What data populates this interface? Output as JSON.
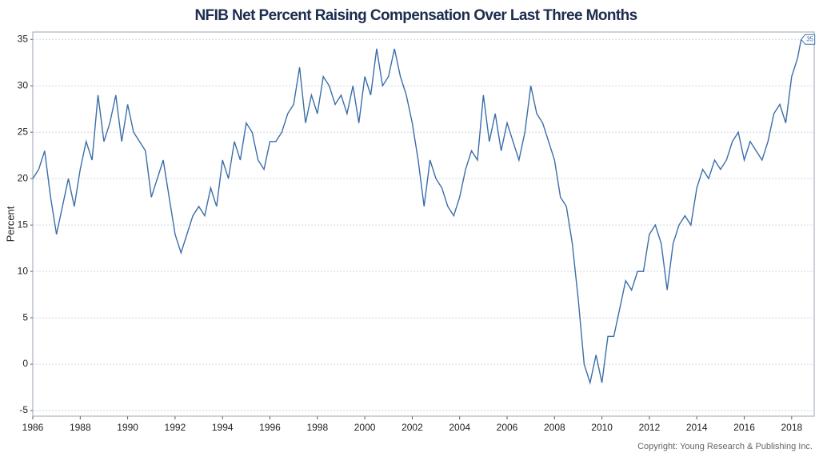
{
  "chart_data": {
    "type": "line",
    "title": "NFIB Net Percent Raising Compensation Over Last Three Months",
    "y_label": "Percent",
    "copyright": "Copyright: Young Research & Publishing Inc.",
    "color": "#3b6ea8",
    "x": [
      1986,
      1986.25,
      1986.5,
      1986.75,
      1987,
      1987.25,
      1987.5,
      1987.75,
      1988,
      1988.25,
      1988.5,
      1988.75,
      1989,
      1989.25,
      1989.5,
      1989.75,
      1990,
      1990.25,
      1990.5,
      1990.75,
      1991,
      1991.25,
      1991.5,
      1991.75,
      1992,
      1992.25,
      1992.5,
      1992.75,
      1993,
      1993.25,
      1993.5,
      1993.75,
      1994,
      1994.25,
      1994.5,
      1994.75,
      1995,
      1995.25,
      1995.5,
      1995.75,
      1996,
      1996.25,
      1996.5,
      1996.75,
      1997,
      1997.25,
      1997.5,
      1997.75,
      1998,
      1998.25,
      1998.5,
      1998.75,
      1999,
      1999.25,
      1999.5,
      1999.75,
      2000,
      2000.25,
      2000.5,
      2000.75,
      2001,
      2001.25,
      2001.5,
      2001.75,
      2002,
      2002.25,
      2002.5,
      2002.75,
      2003,
      2003.25,
      2003.5,
      2003.75,
      2004,
      2004.25,
      2004.5,
      2004.75,
      2005,
      2005.25,
      2005.5,
      2005.75,
      2006,
      2006.25,
      2006.5,
      2006.75,
      2007,
      2007.25,
      2007.5,
      2007.75,
      2008,
      2008.25,
      2008.5,
      2008.75,
      2009,
      2009.25,
      2009.5,
      2009.75,
      2010,
      2010.25,
      2010.5,
      2010.75,
      2011,
      2011.25,
      2011.5,
      2011.75,
      2012,
      2012.25,
      2012.5,
      2012.75,
      2013,
      2013.25,
      2013.5,
      2013.75,
      2014,
      2014.25,
      2014.5,
      2014.75,
      2015,
      2015.25,
      2015.5,
      2015.75,
      2016,
      2016.25,
      2016.5,
      2016.75,
      2017,
      2017.25,
      2017.5,
      2017.75,
      2018,
      2018.25,
      2018.4
    ],
    "values": [
      20,
      21,
      23,
      18,
      14,
      17,
      20,
      17,
      21,
      24,
      22,
      29,
      24,
      26,
      29,
      24,
      28,
      25,
      24,
      23,
      18,
      20,
      22,
      18,
      14,
      12,
      14,
      16,
      17,
      16,
      19,
      17,
      22,
      20,
      24,
      22,
      26,
      25,
      22,
      21,
      24,
      24,
      25,
      27,
      28,
      32,
      26,
      29,
      27,
      31,
      30,
      28,
      29,
      27,
      30,
      26,
      31,
      29,
      34,
      30,
      31,
      34,
      31,
      29,
      26,
      22,
      17,
      22,
      20,
      19,
      17,
      16,
      18,
      21,
      23,
      22,
      29,
      24,
      27,
      23,
      26,
      24,
      22,
      25,
      30,
      27,
      26,
      24,
      22,
      18,
      17,
      13,
      7,
      0,
      -2,
      1,
      -2,
      3,
      3,
      6,
      9,
      8,
      10,
      10,
      14,
      15,
      13,
      8,
      13,
      15,
      16,
      15,
      19,
      21,
      20,
      22,
      21,
      22,
      24,
      25,
      22,
      24,
      23,
      22,
      24,
      27,
      28,
      26,
      31,
      33,
      35
    ],
    "xlim": [
      1986,
      2018.95
    ],
    "xticks": [
      1986,
      1988,
      1990,
      1992,
      1994,
      1996,
      1998,
      2000,
      2002,
      2004,
      2006,
      2008,
      2010,
      2012,
      2014,
      2016,
      2018
    ],
    "ylim": [
      -5.6,
      35.8
    ],
    "yticks": [
      -5,
      0,
      5,
      10,
      15,
      20,
      25,
      30,
      35
    ],
    "grid": true
  }
}
